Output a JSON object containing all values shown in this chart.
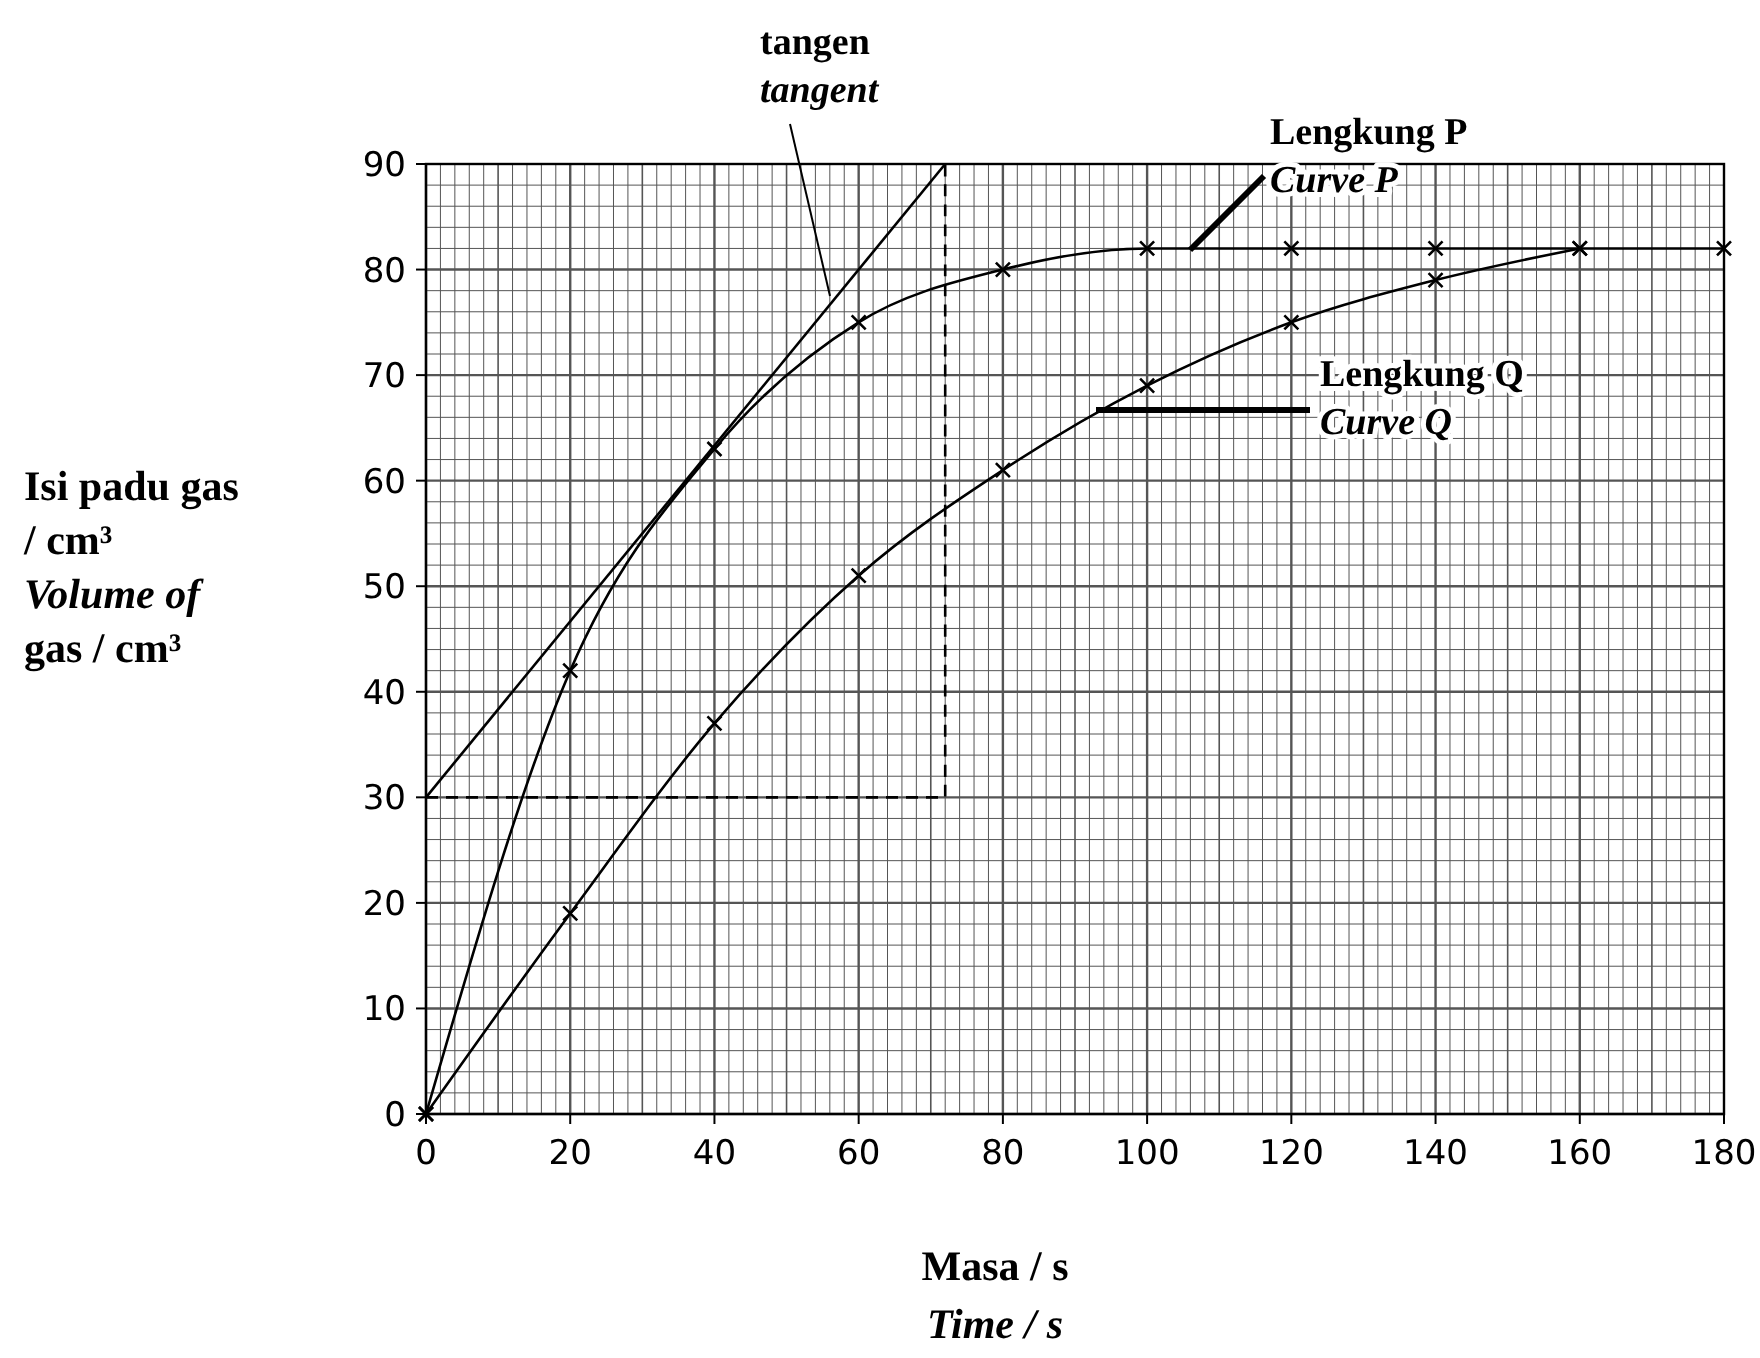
{
  "chart_data": {
    "type": "line",
    "xlabel": "Masa / s\nTime / s",
    "ylabel": "Isi padu gas\n/ cm³\nVolume of\ngas / cm³",
    "xlim": [
      0,
      180
    ],
    "ylim": [
      0,
      90
    ],
    "xticks": [
      0,
      20,
      40,
      60,
      80,
      100,
      120,
      140,
      160,
      180
    ],
    "yticks": [
      0,
      10,
      20,
      30,
      40,
      50,
      60,
      70,
      80,
      90
    ],
    "grid": true,
    "series": [
      {
        "name": "Lengkung P\nCurve P",
        "color": "#000000",
        "marker": "cross",
        "x": [
          0,
          20,
          40,
          60,
          80,
          100,
          120,
          140,
          160,
          180
        ],
        "values": [
          0,
          42,
          63,
          75,
          80,
          82,
          82,
          82,
          82,
          82
        ]
      },
      {
        "name": "Lengkung Q\nCurve Q",
        "color": "#000000",
        "marker": "cross",
        "x": [
          0,
          20,
          40,
          60,
          80,
          100,
          120,
          140,
          160
        ],
        "values": [
          0,
          19,
          37,
          51,
          61,
          69,
          75,
          79,
          82
        ]
      },
      {
        "name": "tangen\ntangent",
        "color": "#000000",
        "marker": "none",
        "x": [
          0,
          72
        ],
        "values": [
          30,
          90
        ]
      },
      {
        "color": "#000000",
        "marker": "none",
        "line_style": "dashed",
        "x": [
          0,
          72,
          72
        ],
        "values": [
          30,
          30,
          90
        ]
      }
    ]
  }
}
